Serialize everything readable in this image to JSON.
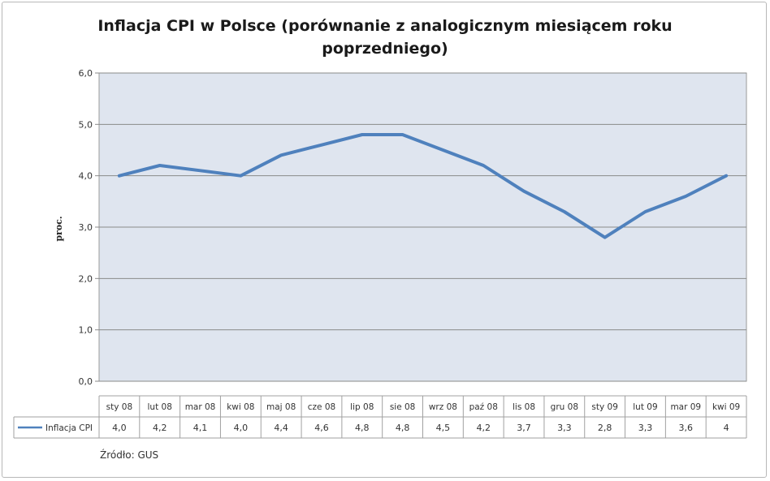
{
  "chart_data": {
    "type": "line",
    "title": "Inflacja CPI w Polsce (porównanie z analogicznym miesiącem roku poprzedniego)",
    "title_lines": [
      "Inflacja CPI w Polsce (porównanie z analogicznym miesiącem roku",
      "poprzedniego)"
    ],
    "ylabel": "proc.",
    "xlabel": "",
    "ylim": [
      0,
      6
    ],
    "yticks": [
      "0,0",
      "1,0",
      "2,0",
      "3,0",
      "4,0",
      "5,0",
      "6,0"
    ],
    "grid": true,
    "legend": "bottom-left (data table)",
    "categories": [
      "sty 08",
      "lut 08",
      "mar 08",
      "kwi 08",
      "maj 08",
      "cze 08",
      "lip 08",
      "sie 08",
      "wrz 08",
      "paź 08",
      "lis 08",
      "gru 08",
      "sty 09",
      "lut 09",
      "mar 09",
      "kwi 09"
    ],
    "series": [
      {
        "name": "Inflacja CPI",
        "values": [
          4.0,
          4.2,
          4.1,
          4.0,
          4.4,
          4.6,
          4.8,
          4.8,
          4.5,
          4.2,
          3.7,
          3.3,
          2.8,
          3.3,
          3.6,
          4.0
        ],
        "labels": [
          "4,0",
          "4,2",
          "4,1",
          "4,0",
          "4,4",
          "4,6",
          "4,8",
          "4,8",
          "4,5",
          "4,2",
          "3,7",
          "3,3",
          "2,8",
          "3,3",
          "3,6",
          "4"
        ],
        "color": "#4f81bd"
      }
    ],
    "source": "Źródło: GUS"
  },
  "colors": {
    "plot_bg": "#dfe5ef",
    "grid": "#8a8a8a",
    "line": "#4f81bd"
  }
}
